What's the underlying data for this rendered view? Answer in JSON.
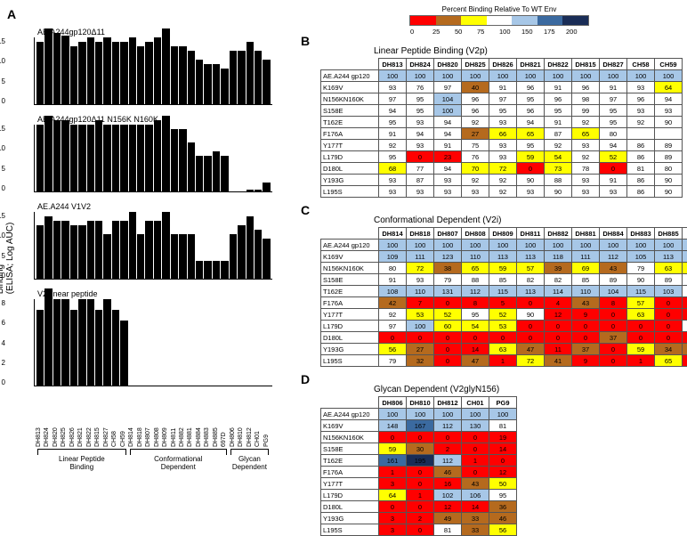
{
  "colors": {
    "scale": [
      {
        "min": 0,
        "max": 25,
        "hex": "#ff0000"
      },
      {
        "min": 25,
        "max": 50,
        "hex": "#b56a1e"
      },
      {
        "min": 50,
        "max": 75,
        "hex": "#ffff00"
      },
      {
        "min": 75,
        "max": 100,
        "hex": "#ffffff"
      },
      {
        "min": 100,
        "max": 150,
        "hex": "#a7c7e7"
      },
      {
        "min": 150,
        "max": 175,
        "hex": "#3b6aa0"
      },
      {
        "min": 175,
        "max": 1000,
        "hex": "#1a2d57"
      }
    ],
    "black": "#000000",
    "white": "#ffffff",
    "border": "#555555"
  },
  "legend": {
    "title": "Percent Binding Relative To WT Env",
    "stops": [
      "0",
      "25",
      "50",
      "75",
      "100",
      "150",
      "175",
      "200"
    ],
    "fills": [
      "#ff0000",
      "#b56a1e",
      "#ffff00",
      "#ffffff",
      "#a7c7e7",
      "#3b6aa0",
      "#1a2d57"
    ]
  },
  "panelA": {
    "ylabel": "Binding\n(ELISA; Log AUC)",
    "categories": [
      "DH813",
      "DH824",
      "DH820",
      "DH825",
      "DH826",
      "DH821",
      "DH822",
      "DH815",
      "DH827",
      "CH58",
      "CH59",
      "DH814",
      "DH818",
      "DH807",
      "DH808",
      "DH809",
      "DH811",
      "DH882",
      "DH881",
      "DH884",
      "DH883",
      "DH885",
      "697D",
      "DH806",
      "DH810",
      "DH812",
      "CH01",
      "PG9"
    ],
    "groups": [
      {
        "label": "Linear Peptide\nBinding",
        "count": 11
      },
      {
        "label": "Conformational\nDependent",
        "count": 12
      },
      {
        "label": "Glycan\nDependent",
        "count": 5
      }
    ],
    "subplots": [
      {
        "title": "AE.A244gp120Δ11",
        "ymax": 15,
        "ystep": 5,
        "values": [
          14,
          17,
          16,
          15.5,
          13,
          14,
          15,
          14,
          15,
          14,
          14,
          15,
          13,
          14,
          15,
          17,
          13,
          13,
          12,
          10,
          9,
          9,
          8,
          12,
          12,
          14,
          12,
          10
        ]
      },
      {
        "title": "AE.A244gp120Δ11 N156K N160K",
        "ymax": 15,
        "ystep": 5,
        "values": [
          15,
          17,
          16,
          16,
          15,
          15,
          15,
          16,
          15,
          15,
          15,
          15,
          15,
          15,
          16,
          17,
          14,
          14,
          11,
          8,
          8,
          9,
          8,
          0,
          0,
          0.5,
          0.5,
          2
        ]
      },
      {
        "title": "AE.A244 V1V2",
        "ymax": 15,
        "ystep": 5,
        "values": [
          12,
          14,
          13,
          13,
          12,
          12,
          13,
          13,
          10,
          13,
          13,
          15,
          10,
          13,
          13,
          15,
          10,
          10,
          10,
          4,
          4,
          4,
          4,
          10,
          12,
          14,
          11,
          9
        ]
      },
      {
        "title": "V2 linear peptide",
        "ymax": 8,
        "ystep": 2,
        "values": [
          7,
          9,
          8,
          8,
          7,
          8,
          8,
          7,
          8,
          7,
          6,
          0,
          0,
          0,
          0,
          0,
          0,
          0,
          0,
          0,
          0,
          0,
          0,
          0,
          0,
          0,
          0,
          0
        ]
      }
    ],
    "bar_color": "#000000",
    "axis_color": "#000000",
    "title_fontsize": 9,
    "tick_fontsize": 8,
    "xlabel_fontsize": 7
  },
  "panelB": {
    "label": "B",
    "title": "Linear Peptide Binding (V2p)",
    "columns": [
      "DH813",
      "DH824",
      "DH820",
      "DH825",
      "DH826",
      "DH821",
      "DH822",
      "DH815",
      "DH827",
      "CH58",
      "CH59"
    ],
    "rows": [
      {
        "h": "AE.A244 gp120",
        "v": [
          100,
          100,
          100,
          100,
          100,
          100,
          100,
          100,
          100,
          100,
          100
        ]
      },
      {
        "h": "K169V",
        "v": [
          93,
          76,
          97,
          40,
          91,
          96,
          91,
          96,
          91,
          93,
          64
        ]
      },
      {
        "h": "N156KN160K",
        "v": [
          97,
          95,
          104,
          96,
          97,
          95,
          96,
          98,
          97,
          96,
          94
        ]
      },
      {
        "h": "S158E",
        "v": [
          94,
          95,
          100,
          96,
          95,
          96,
          95,
          99,
          95,
          93,
          93
        ]
      },
      {
        "h": "T162E",
        "v": [
          95,
          93,
          94,
          92,
          93,
          94,
          91,
          92,
          95,
          92,
          90
        ]
      },
      {
        "h": "F176A",
        "v": [
          91,
          94,
          94,
          27,
          66,
          65,
          87,
          65,
          80,
          null,
          null
        ]
      },
      {
        "h": "Y177T",
        "v": [
          92,
          93,
          91,
          75,
          93,
          95,
          92,
          93,
          94,
          86,
          89
        ]
      },
      {
        "h": "L179D",
        "v": [
          95,
          0,
          23,
          76,
          93,
          59,
          54,
          92,
          52,
          86,
          89
        ]
      },
      {
        "h": "D180L",
        "v": [
          68,
          77,
          94,
          70,
          72,
          0,
          73,
          78,
          0,
          81,
          80
        ]
      },
      {
        "h": "Y193G",
        "v": [
          93,
          87,
          93,
          92,
          92,
          90,
          88,
          93,
          91,
          86,
          90
        ]
      },
      {
        "h": "L195S",
        "v": [
          93,
          93,
          93,
          93,
          92,
          93,
          90,
          93,
          93,
          86,
          90
        ]
      }
    ]
  },
  "panelC": {
    "label": "C",
    "title": "Conformational Dependent (V2i)",
    "columns": [
      "DH814",
      "DH818",
      "DH807",
      "DH808",
      "DH809",
      "DH811",
      "DH882",
      "DH881",
      "DH884",
      "DH883",
      "DH885",
      "697D"
    ],
    "rows": [
      {
        "h": "AE.A244 gp120",
        "v": [
          100,
          100,
          100,
          100,
          100,
          100,
          100,
          100,
          100,
          100,
          100,
          100
        ]
      },
      {
        "h": "K169V",
        "v": [
          109,
          111,
          123,
          110,
          113,
          113,
          118,
          111,
          112,
          105,
          113,
          113
        ]
      },
      {
        "h": "N156KN160K",
        "v": [
          80,
          72,
          38,
          65,
          59,
          57,
          39,
          69,
          43,
          79,
          63,
          55
        ]
      },
      {
        "h": "S158E",
        "v": [
          91,
          93,
          79,
          88,
          85,
          82,
          82,
          85,
          89,
          90,
          89,
          91
        ]
      },
      {
        "h": "T162E",
        "v": [
          108,
          110,
          131,
          112,
          115,
          113,
          114,
          110,
          104,
          115,
          103,
          null
        ]
      },
      {
        "h": "F176A",
        "v": [
          42,
          7,
          0,
          8,
          5,
          0,
          4,
          43,
          8,
          57,
          0,
          0
        ]
      },
      {
        "h": "Y177T",
        "v": [
          92,
          53,
          52,
          95,
          52,
          90,
          12,
          9,
          0,
          63,
          0,
          0
        ]
      },
      {
        "h": "L179D",
        "v": [
          97,
          100,
          60,
          54,
          53,
          0,
          0,
          0,
          0,
          0,
          0,
          97
        ]
      },
      {
        "h": "D180L",
        "v": [
          0,
          0,
          0,
          0,
          0,
          0,
          0,
          0,
          37,
          0,
          0,
          0
        ]
      },
      {
        "h": "Y193G",
        "v": [
          56,
          27,
          0,
          14,
          63,
          47,
          11,
          37,
          0,
          59,
          34,
          42
        ]
      },
      {
        "h": "L195S",
        "v": [
          79,
          32,
          0,
          47,
          1,
          72,
          41,
          9,
          0,
          1,
          65,
          1
        ]
      }
    ]
  },
  "panelD": {
    "label": "D",
    "title": "Glycan Dependent (V2glyN156)",
    "columns": [
      "DH806",
      "DH810",
      "DH812",
      "CH01",
      "PG9"
    ],
    "rows": [
      {
        "h": "AE.A244 gp120",
        "v": [
          100,
          100,
          100,
          100,
          100
        ]
      },
      {
        "h": "K169V",
        "v": [
          148,
          167,
          112,
          130,
          81
        ]
      },
      {
        "h": "N156KN160K",
        "v": [
          0,
          0,
          0,
          0,
          19
        ]
      },
      {
        "h": "S158E",
        "v": [
          59,
          30,
          2,
          0,
          14
        ]
      },
      {
        "h": "T162E",
        "v": [
          161,
          195,
          112,
          1,
          0
        ]
      },
      {
        "h": "F176A",
        "v": [
          1,
          0,
          46,
          0,
          12
        ]
      },
      {
        "h": "Y177T",
        "v": [
          3,
          0,
          16,
          43,
          50
        ]
      },
      {
        "h": "L179D",
        "v": [
          64,
          1,
          102,
          106,
          95
        ]
      },
      {
        "h": "D180L",
        "v": [
          0,
          0,
          12,
          14,
          36
        ]
      },
      {
        "h": "Y193G",
        "v": [
          3,
          2,
          49,
          33,
          46
        ]
      },
      {
        "h": "L195S",
        "v": [
          3,
          0,
          81,
          33,
          56
        ]
      }
    ]
  },
  "labels": {
    "A": "A",
    "B": "B",
    "C": "C",
    "D": "D"
  }
}
